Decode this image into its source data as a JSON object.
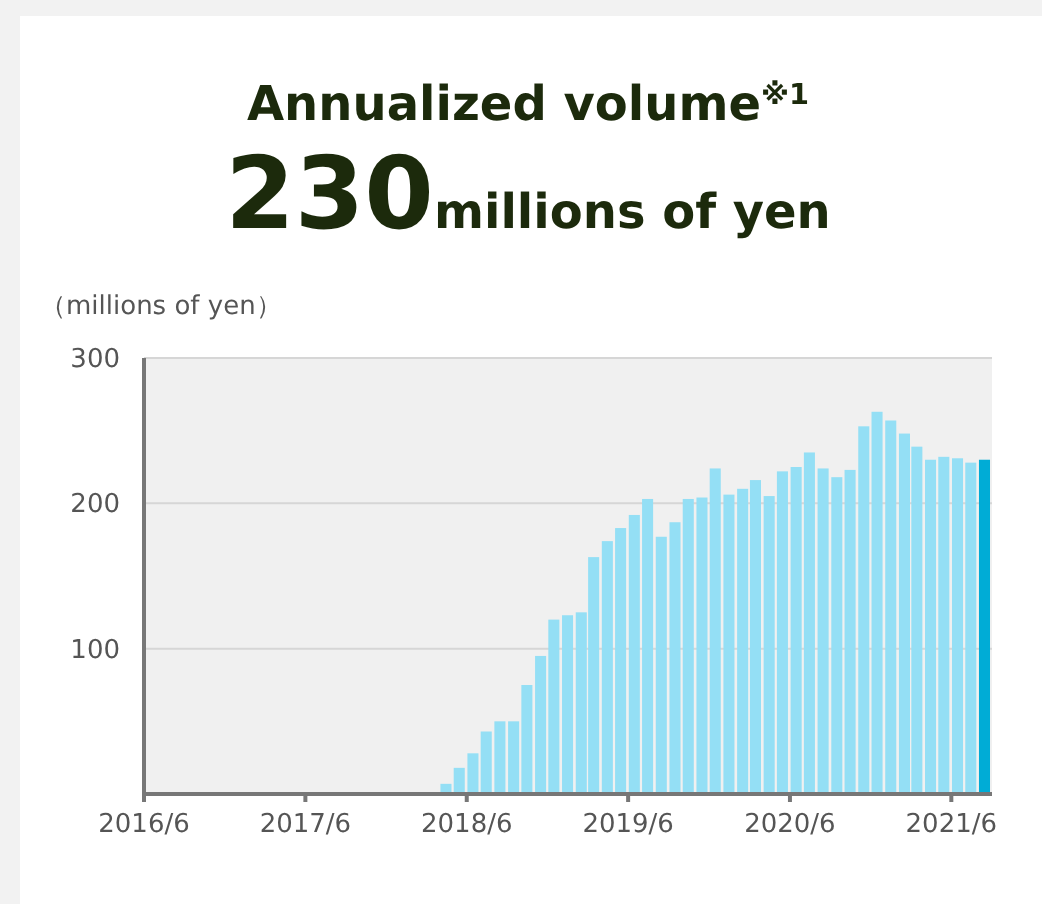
{
  "chart_data": {
    "type": "bar",
    "title": "Annualized volume$^{※1}$",
    "subtitle": "230millions of yen",
    "ylabel": "（millions of yen）",
    "x": [
      "2018-04-15",
      "2018-05-15",
      "2018-06-15",
      "2018-07-15",
      "2018-08-15",
      "2018-09-15",
      "2018-10-15",
      "2018-11-15",
      "2018-12-15",
      "2019-01-15",
      "2019-02-15",
      "2019-03-15",
      "2019-04-15",
      "2019-05-15",
      "2019-06-15",
      "2019-07-15",
      "2019-08-15",
      "2019-09-15",
      "2019-10-15",
      "2019-11-15",
      "2019-12-15",
      "2020-01-15",
      "2020-02-15",
      "2020-03-15",
      "2020-04-15",
      "2020-05-15",
      "2020-06-15",
      "2020-07-15",
      "2020-08-15",
      "2020-09-15",
      "2020-10-15",
      "2020-11-15",
      "2020-12-15",
      "2021-01-15",
      "2021-02-15",
      "2021-03-15",
      "2021-04-15",
      "2021-05-15",
      "2021-06-15",
      "2021-07-15",
      "2021-08-15"
    ],
    "values": [
      7,
      18,
      28,
      43,
      50,
      50,
      75,
      95,
      120,
      123,
      125,
      163,
      174,
      183,
      192,
      203,
      177,
      187,
      203,
      204,
      224,
      206,
      210,
      216,
      205,
      222,
      225,
      235,
      224,
      218,
      223,
      253,
      263,
      257,
      248,
      239,
      230,
      232,
      231,
      228,
      230
    ],
    "colors": [
      "#94dff5",
      "#94dff5",
      "#94dff5",
      "#94dff5",
      "#94dff5",
      "#94dff5",
      "#94dff5",
      "#94dff5",
      "#94dff5",
      "#94dff5",
      "#94dff5",
      "#94dff5",
      "#94dff5",
      "#94dff5",
      "#94dff5",
      "#94dff5",
      "#94dff5",
      "#94dff5",
      "#94dff5",
      "#94dff5",
      "#94dff5",
      "#94dff5",
      "#94dff5",
      "#94dff5",
      "#94dff5",
      "#94dff5",
      "#94dff5",
      "#94dff5",
      "#94dff5",
      "#94dff5",
      "#94dff5",
      "#94dff5",
      "#94dff5",
      "#94dff5",
      "#94dff5",
      "#94dff5",
      "#94dff5",
      "#94dff5",
      "#94dff5",
      "#94dff5",
      "#00acd6"
    ],
    "xlim": [
      "2016-06",
      "2021-09"
    ],
    "xticks": [
      {
        "value": "2016-06",
        "label": "2016/6"
      },
      {
        "value": "2017-06",
        "label": "2017/6"
      },
      {
        "value": "2018-06",
        "label": "2018/6"
      },
      {
        "value": "2019-06",
        "label": "2019/6"
      },
      {
        "value": "2020-06",
        "label": "2020/6"
      },
      {
        "value": "2021-06",
        "label": "2021/6"
      }
    ],
    "ylim": [
      0,
      300
    ],
    "yticks": [
      100,
      200,
      300
    ],
    "grid": "y"
  }
}
